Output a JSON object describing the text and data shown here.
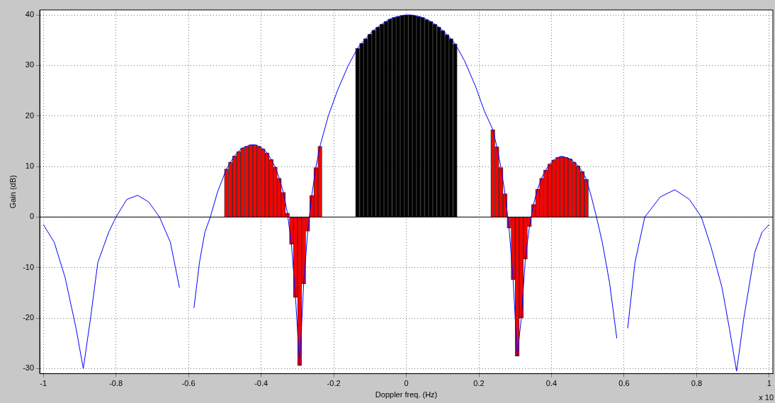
{
  "chart_data": {
    "type": "bar",
    "xlabel": "Doppler freq. (Hz)",
    "ylabel": "Gain (dB)",
    "annotations": [
      "x 10"
    ],
    "xlim": [
      -1.01,
      1.01
    ],
    "ylim": [
      -31,
      41
    ],
    "xticks": [
      -1,
      -0.8,
      -0.6,
      -0.4,
      -0.2,
      0,
      0.2,
      0.4,
      0.6,
      0.8,
      1
    ],
    "yticks": [
      -30,
      -20,
      -10,
      0,
      10,
      20,
      30,
      40
    ],
    "grid": true,
    "legend": false,
    "ref_lines": [
      {
        "axis": "y",
        "value": 0,
        "color": "#000000"
      }
    ],
    "series": [
      {
        "color": "#ff0000",
        "x": [
          -0.4956,
          -0.4844,
          -0.4732,
          -0.462,
          -0.4508,
          -0.4396,
          -0.4284,
          -0.4172,
          -0.406,
          -0.3948,
          -0.3836,
          -0.3724,
          -0.3612,
          -0.35,
          -0.3388,
          -0.3276,
          -0.3164,
          -0.3052,
          -0.294,
          -0.2828,
          -0.2716,
          -0.2604,
          -0.2492,
          -0.238,
          0.2384,
          0.2496,
          0.2608,
          0.272,
          0.2832,
          0.2944,
          0.3056,
          0.3168,
          0.328,
          0.3392,
          0.3504,
          0.3616,
          0.3728,
          0.384,
          0.3952,
          0.4064,
          0.4176,
          0.4288,
          0.44,
          0.4512,
          0.4624,
          0.4736,
          0.4848,
          0.496
        ],
        "values": [
          9.5,
          10.9,
          12.1,
          13.0,
          13.7,
          14.0,
          14.3,
          14.3,
          14.0,
          13.5,
          12.7,
          11.4,
          9.9,
          7.7,
          4.9,
          0.8,
          -5.4,
          -15.9,
          -29.4,
          -13.2,
          -2.8,
          4.3,
          9.8,
          14.0,
          17.3,
          13.9,
          9.8,
          4.6,
          -2.2,
          -12.4,
          -27.5,
          -20.0,
          -8.3,
          -1.9,
          2.5,
          5.5,
          7.7,
          9.3,
          10.5,
          11.3,
          11.8,
          12.0,
          11.8,
          11.5,
          10.9,
          10.1,
          9.0,
          7.5
        ]
      },
      {
        "color": "#000000",
        "x": [
          -0.1344,
          -0.1232,
          -0.112,
          -0.1008,
          -0.0896,
          -0.0784,
          -0.0672,
          -0.056,
          -0.0448,
          -0.0336,
          -0.0224,
          -0.0112,
          0,
          0.0112,
          0.0224,
          0.0336,
          0.0448,
          0.056,
          0.0672,
          0.0784,
          0.0896,
          0.1008,
          0.112,
          0.1232,
          0.1344
        ],
        "values": [
          33.4,
          34.4,
          35.3,
          36.2,
          37.0,
          37.6,
          38.2,
          38.7,
          39.2,
          39.5,
          39.7,
          39.9,
          40.0,
          40.0,
          39.9,
          39.7,
          39.5,
          39.1,
          38.7,
          38.2,
          37.6,
          36.9,
          36.1,
          35.3,
          34.3
        ]
      },
      {
        "type": "line",
        "color": "#0000ff",
        "marker": "none",
        "line_style": "solid",
        "x": [
          -1,
          -0.97,
          -0.94,
          -0.91,
          -0.89,
          -0.87,
          -0.85,
          -0.82,
          -0.8,
          -0.77,
          -0.74,
          -0.71,
          -0.68,
          -0.65,
          -0.625,
          -0.605,
          -0.597,
          -0.585,
          -0.57,
          -0.555,
          -0.54,
          -0.52,
          -0.4956,
          -0.4844,
          -0.4732,
          -0.462,
          -0.4508,
          -0.4396,
          -0.4284,
          -0.4172,
          -0.406,
          -0.3948,
          -0.3836,
          -0.3724,
          -0.3612,
          -0.35,
          -0.3388,
          -0.3276,
          -0.3164,
          -0.3052,
          -0.294,
          -0.2828,
          -0.2716,
          -0.2604,
          -0.2492,
          -0.238,
          -0.215,
          -0.19,
          -0.16,
          -0.1344,
          -0.1232,
          -0.112,
          -0.1008,
          -0.0896,
          -0.0784,
          -0.0672,
          -0.056,
          -0.0448,
          -0.0336,
          -0.0224,
          -0.0112,
          0,
          0.0112,
          0.0224,
          0.0336,
          0.0448,
          0.056,
          0.0672,
          0.0784,
          0.0896,
          0.1008,
          0.112,
          0.1232,
          0.1344,
          0.16,
          0.19,
          0.215,
          0.2384,
          0.2496,
          0.2608,
          0.272,
          0.2832,
          0.2944,
          0.3056,
          0.3168,
          0.328,
          0.3392,
          0.3504,
          0.3616,
          0.3728,
          0.384,
          0.3952,
          0.4064,
          0.4176,
          0.4288,
          0.44,
          0.4512,
          0.4624,
          0.4736,
          0.4848,
          0.496,
          0.51,
          0.524,
          0.54,
          0.56,
          0.58,
          0.593,
          0.6,
          0.61,
          0.63,
          0.657,
          0.7,
          0.74,
          0.78,
          0.813,
          0.84,
          0.87,
          0.89,
          0.91,
          0.93,
          0.96,
          0.98,
          1
        ],
        "values": [
          -1.5,
          -5,
          -12,
          -22,
          -30,
          -20,
          -9,
          -3,
          0,
          3.5,
          4.3,
          3,
          0,
          -5,
          -14,
          null,
          null,
          -18,
          -9,
          -3,
          0,
          5,
          9.5,
          10.9,
          12.1,
          13.0,
          13.7,
          14.0,
          14.3,
          14.3,
          14.0,
          13.5,
          12.7,
          11.4,
          9.9,
          7.7,
          4.9,
          0.8,
          -5.4,
          -15.9,
          -29.4,
          -13.2,
          -2.8,
          4.3,
          9.8,
          14.0,
          20,
          25,
          30,
          33.4,
          34.4,
          35.3,
          36.2,
          37.0,
          37.6,
          38.2,
          38.7,
          39.2,
          39.5,
          39.7,
          39.9,
          40.0,
          40.0,
          39.9,
          39.7,
          39.5,
          39.1,
          38.7,
          38.2,
          37.6,
          36.9,
          36.1,
          35.3,
          34.3,
          31,
          26,
          21,
          17.3,
          13.9,
          9.8,
          4.6,
          -2.2,
          -12.4,
          -27.5,
          -20.0,
          -8.3,
          -1.9,
          2.5,
          5.5,
          7.7,
          9.3,
          10.5,
          11.3,
          11.8,
          12.0,
          11.8,
          11.5,
          10.9,
          10.1,
          9.0,
          7.5,
          4,
          0,
          -5,
          -13,
          -24,
          null,
          null,
          -22,
          -9,
          0,
          4,
          5.4,
          3.5,
          0,
          -6,
          -14,
          -22,
          -30.5,
          -20,
          -7,
          -3,
          -1.5
        ]
      }
    ]
  }
}
